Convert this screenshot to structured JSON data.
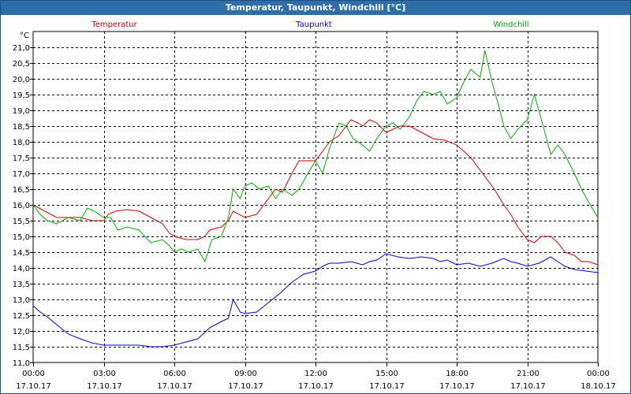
{
  "window": {
    "title": "Temperatur, Taupunkt, Windchill [°C]"
  },
  "colors": {
    "temperatur": "#cc0000",
    "taupunkt": "#0000cc",
    "windchill": "#00aa00",
    "titlebar": "#2f6ea8"
  },
  "chart_data": {
    "type": "line",
    "title": "Temperatur, Taupunkt, Windchill [°C]",
    "ylabel": "°C",
    "ylim": [
      11.0,
      21.5
    ],
    "yticks": [
      "11,0",
      "11,5",
      "12,0",
      "12,5",
      "13,0",
      "13,5",
      "14,0",
      "14,5",
      "15,0",
      "15,5",
      "16,0",
      "16,5",
      "17,0",
      "17,5",
      "18,0",
      "18,5",
      "19,0",
      "19,5",
      "20,0",
      "20,5",
      "21,0"
    ],
    "xlim": [
      0,
      24
    ],
    "xticks": [
      {
        "time": "00:00",
        "date": "17.10.17"
      },
      {
        "time": "03:00",
        "date": "17.10.17"
      },
      {
        "time": "06:00",
        "date": "17.10.17"
      },
      {
        "time": "09:00",
        "date": "17.10.17"
      },
      {
        "time": "12:00",
        "date": "17.10.17"
      },
      {
        "time": "15:00",
        "date": "17.10.17"
      },
      {
        "time": "18:00",
        "date": "17.10.17"
      },
      {
        "time": "21:00",
        "date": "17.10.17"
      },
      {
        "time": "00:00",
        "date": "18.10.17"
      }
    ],
    "grid": true,
    "series": [
      {
        "name": "Temperatur",
        "color": "#cc0000",
        "points": [
          [
            0,
            16.0
          ],
          [
            0.5,
            15.8
          ],
          [
            1,
            15.6
          ],
          [
            1.5,
            15.6
          ],
          [
            2,
            15.6
          ],
          [
            2.5,
            15.5
          ],
          [
            3,
            15.5
          ],
          [
            3.2,
            15.7
          ],
          [
            3.5,
            15.8
          ],
          [
            4,
            15.85
          ],
          [
            4.5,
            15.8
          ],
          [
            5,
            15.6
          ],
          [
            5.5,
            15.4
          ],
          [
            5.8,
            15.1
          ],
          [
            6,
            15.0
          ],
          [
            6.5,
            14.9
          ],
          [
            7,
            14.9
          ],
          [
            7.3,
            15.0
          ],
          [
            7.5,
            15.2
          ],
          [
            8,
            15.3
          ],
          [
            8.3,
            15.5
          ],
          [
            8.5,
            15.8
          ],
          [
            9,
            15.6
          ],
          [
            9.5,
            15.7
          ],
          [
            10,
            16.2
          ],
          [
            10.3,
            16.5
          ],
          [
            10.6,
            16.4
          ],
          [
            11,
            17.0
          ],
          [
            11.3,
            17.4
          ],
          [
            11.6,
            17.4
          ],
          [
            12,
            17.4
          ],
          [
            12.3,
            17.7
          ],
          [
            12.6,
            18.0
          ],
          [
            13,
            18.2
          ],
          [
            13.3,
            18.5
          ],
          [
            13.5,
            18.7
          ],
          [
            13.8,
            18.6
          ],
          [
            14,
            18.5
          ],
          [
            14.3,
            18.7
          ],
          [
            14.6,
            18.6
          ],
          [
            15,
            18.3
          ],
          [
            15.3,
            18.4
          ],
          [
            15.6,
            18.5
          ],
          [
            16,
            18.5
          ],
          [
            16.5,
            18.3
          ],
          [
            17,
            18.1
          ],
          [
            17.5,
            18.05
          ],
          [
            18,
            17.9
          ],
          [
            18.3,
            17.7
          ],
          [
            18.6,
            17.5
          ],
          [
            19,
            17.1
          ],
          [
            19.3,
            16.8
          ],
          [
            19.6,
            16.5
          ],
          [
            20,
            16.0
          ],
          [
            20.3,
            15.7
          ],
          [
            20.6,
            15.3
          ],
          [
            21,
            14.9
          ],
          [
            21.3,
            14.8
          ],
          [
            21.6,
            15.0
          ],
          [
            22,
            15.0
          ],
          [
            22.3,
            14.8
          ],
          [
            22.6,
            14.5
          ],
          [
            23,
            14.4
          ],
          [
            23.3,
            14.2
          ],
          [
            23.6,
            14.2
          ],
          [
            24,
            14.1
          ]
        ]
      },
      {
        "name": "Taupunkt",
        "color": "#0000cc",
        "points": [
          [
            0,
            12.8
          ],
          [
            0.3,
            12.6
          ],
          [
            0.6,
            12.45
          ],
          [
            1,
            12.2
          ],
          [
            1.5,
            11.9
          ],
          [
            2,
            11.75
          ],
          [
            2.5,
            11.62
          ],
          [
            3,
            11.55
          ],
          [
            3.5,
            11.55
          ],
          [
            4,
            11.55
          ],
          [
            4.5,
            11.55
          ],
          [
            5,
            11.5
          ],
          [
            5.5,
            11.5
          ],
          [
            6,
            11.55
          ],
          [
            6.5,
            11.65
          ],
          [
            7,
            11.75
          ],
          [
            7.5,
            12.1
          ],
          [
            8,
            12.3
          ],
          [
            8.3,
            12.4
          ],
          [
            8.5,
            13.0
          ],
          [
            8.8,
            12.6
          ],
          [
            9,
            12.55
          ],
          [
            9.5,
            12.6
          ],
          [
            10,
            12.9
          ],
          [
            10.5,
            13.2
          ],
          [
            11,
            13.55
          ],
          [
            11.5,
            13.8
          ],
          [
            12,
            13.9
          ],
          [
            12.3,
            14.05
          ],
          [
            12.6,
            14.15
          ],
          [
            13,
            14.15
          ],
          [
            13.5,
            14.2
          ],
          [
            14,
            14.1
          ],
          [
            14.3,
            14.2
          ],
          [
            14.6,
            14.25
          ],
          [
            15,
            14.45
          ],
          [
            15.5,
            14.35
          ],
          [
            16,
            14.3
          ],
          [
            16.5,
            14.35
          ],
          [
            17,
            14.3
          ],
          [
            17.3,
            14.2
          ],
          [
            17.6,
            14.25
          ],
          [
            18,
            14.1
          ],
          [
            18.5,
            14.15
          ],
          [
            19,
            14.05
          ],
          [
            19.5,
            14.15
          ],
          [
            20,
            14.3
          ],
          [
            20.3,
            14.2
          ],
          [
            20.6,
            14.15
          ],
          [
            21,
            14.05
          ],
          [
            21.5,
            14.15
          ],
          [
            22,
            14.35
          ],
          [
            22.3,
            14.2
          ],
          [
            22.6,
            14.05
          ],
          [
            23,
            13.95
          ],
          [
            23.5,
            13.9
          ],
          [
            24,
            13.85
          ]
        ]
      },
      {
        "name": "Windchill",
        "color": "#00aa00",
        "points": [
          [
            0,
            16.0
          ],
          [
            0.3,
            15.7
          ],
          [
            0.6,
            15.5
          ],
          [
            1,
            15.4
          ],
          [
            1.5,
            15.6
          ],
          [
            2,
            15.5
          ],
          [
            2.3,
            15.9
          ],
          [
            2.6,
            15.8
          ],
          [
            3,
            15.6
          ],
          [
            3.3,
            15.6
          ],
          [
            3.6,
            15.2
          ],
          [
            4,
            15.3
          ],
          [
            4.5,
            15.2
          ],
          [
            5,
            14.8
          ],
          [
            5.5,
            14.9
          ],
          [
            5.8,
            14.7
          ],
          [
            6,
            14.5
          ],
          [
            6.3,
            14.6
          ],
          [
            6.6,
            14.5
          ],
          [
            7,
            14.6
          ],
          [
            7.3,
            14.2
          ],
          [
            7.6,
            14.9
          ],
          [
            8,
            15.0
          ],
          [
            8.3,
            15.6
          ],
          [
            8.5,
            16.5
          ],
          [
            8.8,
            16.2
          ],
          [
            9,
            16.6
          ],
          [
            9.3,
            16.7
          ],
          [
            9.6,
            16.5
          ],
          [
            10,
            16.6
          ],
          [
            10.3,
            16.2
          ],
          [
            10.6,
            16.5
          ],
          [
            11,
            16.3
          ],
          [
            11.3,
            16.5
          ],
          [
            11.6,
            16.9
          ],
          [
            12,
            17.4
          ],
          [
            12.3,
            17.0
          ],
          [
            12.6,
            17.8
          ],
          [
            13,
            18.6
          ],
          [
            13.3,
            18.5
          ],
          [
            13.6,
            18.1
          ],
          [
            14,
            17.9
          ],
          [
            14.3,
            17.7
          ],
          [
            14.6,
            18.1
          ],
          [
            15,
            18.5
          ],
          [
            15.3,
            18.6
          ],
          [
            15.6,
            18.4
          ],
          [
            16,
            18.8
          ],
          [
            16.3,
            19.3
          ],
          [
            16.6,
            19.6
          ],
          [
            17,
            19.5
          ],
          [
            17.3,
            19.6
          ],
          [
            17.6,
            19.2
          ],
          [
            18,
            19.4
          ],
          [
            18.3,
            19.9
          ],
          [
            18.6,
            20.3
          ],
          [
            19,
            20.05
          ],
          [
            19.2,
            20.9
          ],
          [
            19.5,
            19.9
          ],
          [
            19.8,
            19.1
          ],
          [
            20,
            18.5
          ],
          [
            20.3,
            18.1
          ],
          [
            20.6,
            18.4
          ],
          [
            21,
            18.7
          ],
          [
            21.3,
            19.5
          ],
          [
            21.6,
            18.7
          ],
          [
            22,
            17.6
          ],
          [
            22.3,
            17.9
          ],
          [
            22.6,
            17.6
          ],
          [
            23,
            17.0
          ],
          [
            23.3,
            16.5
          ],
          [
            23.6,
            16.1
          ],
          [
            24,
            15.6
          ]
        ]
      }
    ],
    "legend": [
      "Temperatur",
      "Taupunkt",
      "Windchill"
    ]
  }
}
